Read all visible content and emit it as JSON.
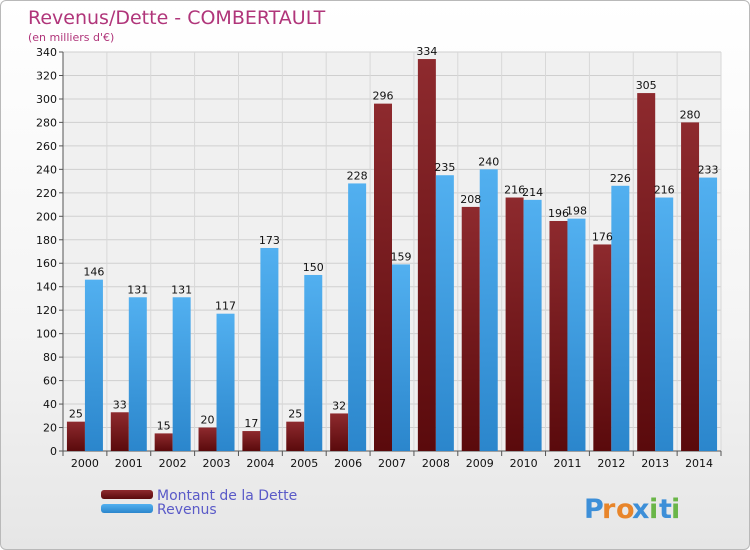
{
  "chart_data": {
    "type": "bar",
    "title": "Revenus/Dette - COMBERTAULT",
    "subtitle": "(en milliers d'€)",
    "categories": [
      "2000",
      "2001",
      "2002",
      "2003",
      "2004",
      "2005",
      "2006",
      "2007",
      "2008",
      "2009",
      "2010",
      "2011",
      "2012",
      "2013",
      "2014"
    ],
    "series": [
      {
        "name": "Montant de la Dette",
        "color": "#7a1a1e",
        "values": [
          25,
          33,
          15,
          20,
          17,
          25,
          32,
          296,
          334,
          208,
          216,
          196,
          176,
          305,
          280
        ]
      },
      {
        "name": "Revenus",
        "color": "#3d9ee4",
        "values": [
          146,
          131,
          131,
          117,
          173,
          150,
          228,
          159,
          235,
          240,
          214,
          198,
          226,
          216,
          233
        ]
      }
    ],
    "ylim": [
      0,
      340
    ],
    "yticks": [
      0,
      20,
      40,
      60,
      80,
      100,
      120,
      140,
      160,
      180,
      200,
      220,
      240,
      260,
      280,
      300,
      320,
      340
    ],
    "grid": true,
    "legend": "bottom-left"
  },
  "logo": {
    "text": "Proxiti",
    "letters": [
      "P",
      "r",
      "o",
      "x",
      "i",
      "t",
      "i"
    ]
  }
}
